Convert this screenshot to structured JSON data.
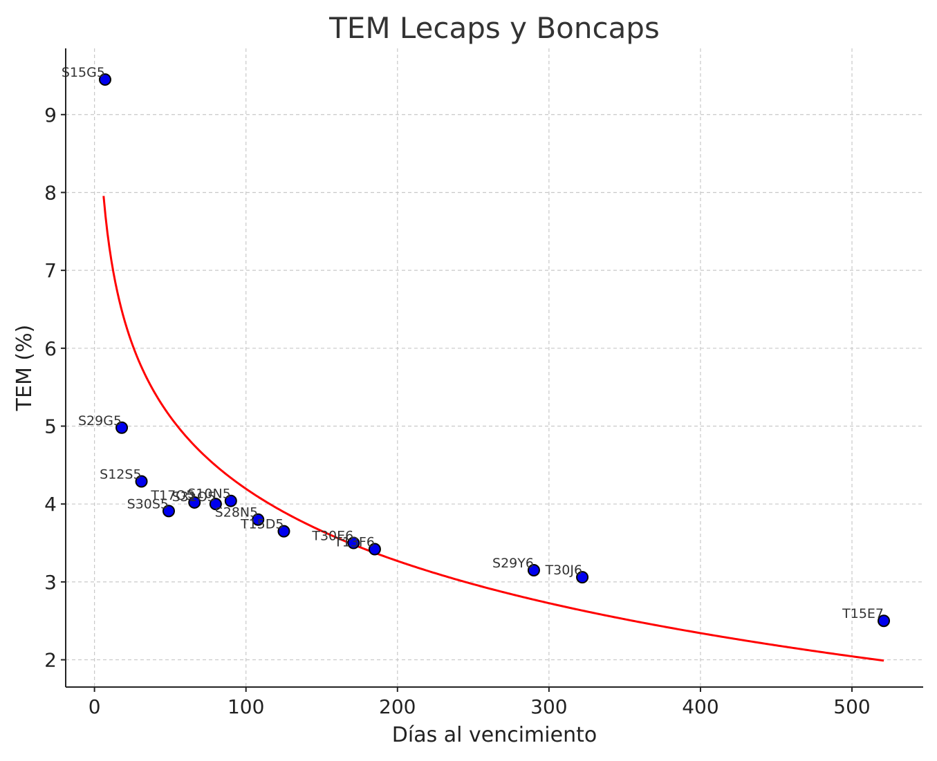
{
  "chart_data": {
    "type": "scatter",
    "title": "TEM Lecaps y Boncaps",
    "xlabel": "Días al vencimiento",
    "ylabel": "TEM (%)",
    "xlim": [
      -19,
      547
    ],
    "ylim": [
      1.65,
      9.85
    ],
    "xticks": [
      0,
      100,
      200,
      300,
      400,
      500
    ],
    "yticks": [
      2,
      3,
      4,
      5,
      6,
      7,
      8,
      9
    ],
    "grid": true,
    "colors": {
      "points": "#0000ee",
      "point_edge": "#000000",
      "curve": "#ff0000"
    },
    "points": [
      {
        "label": "S15G5",
        "x": 7,
        "y": 9.45
      },
      {
        "label": "S29G5",
        "x": 18,
        "y": 4.98
      },
      {
        "label": "S12S5",
        "x": 31,
        "y": 4.29
      },
      {
        "label": "S30S5",
        "x": 49,
        "y": 3.91
      },
      {
        "label": "T17O5",
        "x": 66,
        "y": 4.02
      },
      {
        "label": "S31O5",
        "x": 80,
        "y": 4.0
      },
      {
        "label": "S10N5",
        "x": 90,
        "y": 4.04
      },
      {
        "label": "S28N5",
        "x": 108,
        "y": 3.8
      },
      {
        "label": "T15D5",
        "x": 125,
        "y": 3.65
      },
      {
        "label": "T30E6",
        "x": 171,
        "y": 3.5
      },
      {
        "label": "T13F6",
        "x": 185,
        "y": 3.42
      },
      {
        "label": "S29Y6",
        "x": 290,
        "y": 3.15
      },
      {
        "label": "T30J6",
        "x": 322,
        "y": 3.06
      },
      {
        "label": "T15E7",
        "x": 521,
        "y": 2.5
      }
    ],
    "trend_curve": {
      "type": "logarithmic",
      "x_range": [
        6,
        521
      ],
      "a": 10.35,
      "b": -1.3365
    }
  }
}
